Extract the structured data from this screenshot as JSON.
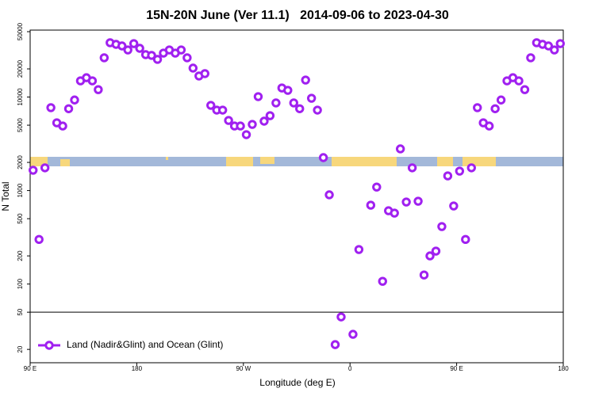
{
  "chart_data": {
    "type": "scatter",
    "title": "15N-20N June (Ver 11.1)   2014-09-06 to 2023-04-30",
    "x_label": "Longitude (deg E)",
    "y_label": "N Total",
    "ylog": true,
    "xlim": [
      90,
      540
    ],
    "ylim": [
      14.4,
      52000
    ],
    "xticks": [
      {
        "value": 90,
        "label": "90 E"
      },
      180,
      {
        "value": 270,
        "label": "90 W"
      },
      {
        "value": 360,
        "label": "0"
      },
      {
        "value": 450,
        "label": "90 E"
      },
      {
        "value": 540,
        "label": "180"
      }
    ],
    "yticks": [
      20,
      50,
      100,
      200,
      500,
      1000,
      2000,
      5000,
      10000,
      20000,
      50000
    ],
    "hline": 50,
    "legend": "bottom-left",
    "series": [
      {
        "name": "Land (Nadir&Glint) and Ocean (Glint)",
        "color": "#a020f0",
        "x": [
          92.5,
          97.5,
          102.5,
          107.5,
          112.5,
          117.5,
          122.5,
          127.5,
          132.5,
          137.5,
          142.5,
          147.5,
          152.5,
          157.5,
          162.5,
          167.5,
          172.5,
          177.5,
          182.5,
          187.5,
          192.5,
          197.5,
          202.5,
          207.5,
          212.5,
          217.5,
          222.5,
          227.5,
          232.5,
          237.5,
          242.5,
          247.5,
          252.5,
          257.5,
          262.5,
          267.5,
          272.5,
          277.5,
          282.5,
          287.5,
          292.5,
          297.5,
          302.5,
          307.5,
          312.5,
          317.5,
          322.5,
          327.5,
          332.5,
          337.5,
          342.5,
          347.5,
          352.5,
          362.5,
          367.5,
          377.5,
          382.5,
          387.5,
          392.5,
          397.5,
          402.5,
          407.5,
          412.5,
          417.5,
          422.5,
          427.5,
          432.5,
          437.5,
          442.5,
          447.5,
          452.5,
          457.5,
          462.5,
          467.5,
          472.5,
          477.5,
          482.5,
          487.5,
          492.5,
          497.5,
          502.5,
          507.5,
          512.5,
          517.5,
          522.5,
          527.5,
          532.5,
          537.5
        ],
        "values": [
          1650,
          300,
          1750,
          7700,
          5300,
          4900,
          7500,
          9300,
          14900,
          16100,
          14900,
          12000,
          26300,
          38100,
          36600,
          35200,
          31900,
          37300,
          33200,
          28400,
          27900,
          25300,
          29500,
          31900,
          29500,
          31900,
          26300,
          20400,
          16800,
          17800,
          8150,
          7250,
          7250,
          5620,
          4900,
          4900,
          3960,
          5100,
          10100,
          5520,
          6320,
          8650,
          12500,
          11800,
          8650,
          7500,
          15200,
          9700,
          7250,
          2250,
          900,
          22.5,
          44.5,
          29,
          234,
          697,
          1090,
          107,
          608,
          574,
          2790,
          754,
          1750,
          769,
          125,
          200,
          225,
          412,
          1435,
          684,
          1614,
          300,
          1750,
          7700,
          5300,
          4900,
          7500,
          9300,
          14900,
          16100,
          14900,
          12000,
          26300,
          38100,
          36600,
          35200,
          31900,
          37300
        ]
      }
    ]
  }
}
